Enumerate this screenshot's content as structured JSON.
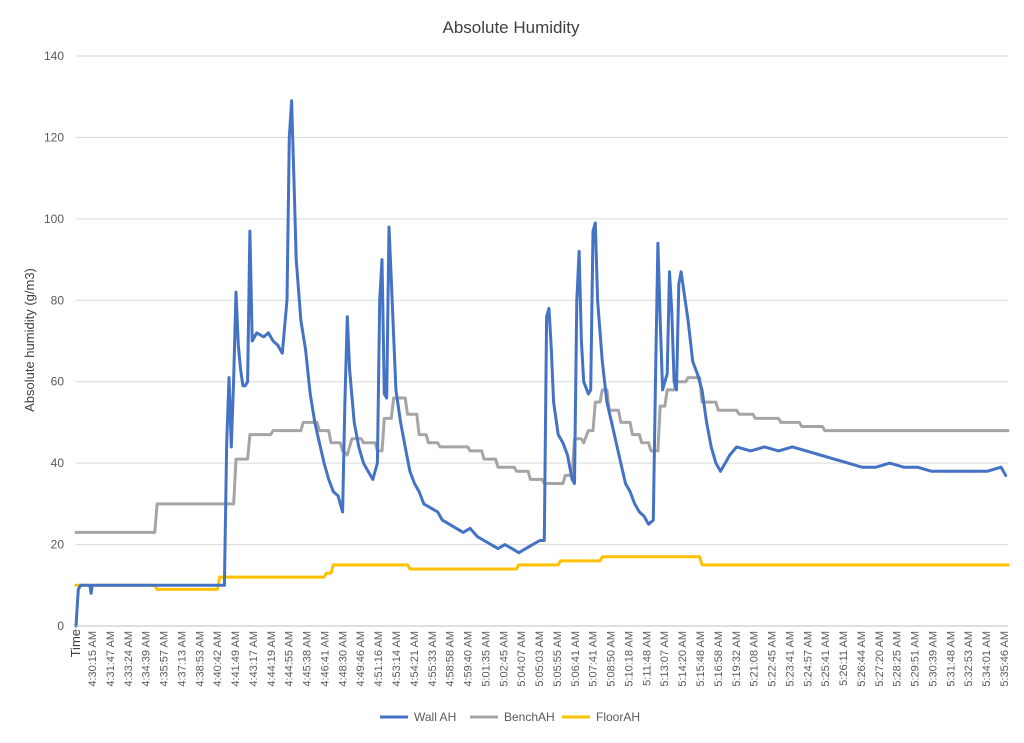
{
  "chart_data": {
    "type": "line",
    "title": "Absolute Humidity",
    "ylabel": "Absolute humidity (g/m3)",
    "xlabel": "Time",
    "ylim": [
      0,
      140
    ],
    "yticks": [
      0,
      20,
      40,
      60,
      80,
      100,
      120,
      140
    ],
    "grid": true,
    "legend_position": "bottom",
    "xlim": [
      "4:29:30 AM",
      "5:36:30 AM"
    ],
    "x_tick_labels": [
      "4:30:15 AM",
      "4:31:47 AM",
      "4:33:24 AM",
      "4:34:39 AM",
      "4:35:57 AM",
      "4:37:13 AM",
      "4:38:53 AM",
      "4:40:42 AM",
      "4:41:49 AM",
      "4:43:17 AM",
      "4:44:19 AM",
      "4:44:55 AM",
      "4:45:38 AM",
      "4:46:41 AM",
      "4:48:30 AM",
      "4:49:46 AM",
      "4:51:16 AM",
      "4:53:14 AM",
      "4:54:21 AM",
      "4:55:33 AM",
      "4:58:58 AM",
      "4:59:40 AM",
      "5:01:35 AM",
      "5:02:45 AM",
      "5:04:07 AM",
      "5:05:03 AM",
      "5:05:55 AM",
      "5:06:41 AM",
      "5:07:41 AM",
      "5:08:50 AM",
      "5:10:18 AM",
      "5:11:48 AM",
      "5:13:07 AM",
      "5:14:20 AM",
      "5:15:48 AM",
      "5:16:58 AM",
      "5:19:32 AM",
      "5:21:08 AM",
      "5:22:45 AM",
      "5:23:41 AM",
      "5:24:57 AM",
      "5:25:41 AM",
      "5:26:11 AM",
      "5:26:44 AM",
      "5:27:20 AM",
      "5:28:25 AM",
      "5:29:51 AM",
      "5:30:39 AM",
      "5:31:48 AM",
      "5:32:53 AM",
      "5:34:01 AM",
      "5:35:46 AM"
    ],
    "series": [
      {
        "name": "Wall AH",
        "color": "#4472c4",
        "points": [
          [
            "4:29:30 AM",
            0
          ],
          [
            "4:29:40 AM",
            9
          ],
          [
            "4:29:50 AM",
            10
          ],
          [
            "4:30:30 AM",
            10
          ],
          [
            "4:30:35 AM",
            8
          ],
          [
            "4:30:40 AM",
            10
          ],
          [
            "4:39:50 AM",
            10
          ],
          [
            "4:40:10 AM",
            10
          ],
          [
            "4:40:20 AM",
            45
          ],
          [
            "4:40:30 AM",
            61
          ],
          [
            "4:40:40 AM",
            44
          ],
          [
            "4:40:50 AM",
            61
          ],
          [
            "4:41:00 AM",
            82
          ],
          [
            "4:41:10 AM",
            69
          ],
          [
            "4:41:20 AM",
            63
          ],
          [
            "4:41:30 AM",
            59
          ],
          [
            "4:41:40 AM",
            59
          ],
          [
            "4:41:50 AM",
            60
          ],
          [
            "4:42:00 AM",
            97
          ],
          [
            "4:42:10 AM",
            70
          ],
          [
            "4:42:30 AM",
            72
          ],
          [
            "4:43:00 AM",
            71
          ],
          [
            "4:43:20 AM",
            72
          ],
          [
            "4:43:40 AM",
            70
          ],
          [
            "4:44:00 AM",
            69
          ],
          [
            "4:44:20 AM",
            67
          ],
          [
            "4:44:40 AM",
            80
          ],
          [
            "4:44:50 AM",
            120
          ],
          [
            "4:45:00 AM",
            129
          ],
          [
            "4:45:10 AM",
            110
          ],
          [
            "4:45:20 AM",
            90
          ],
          [
            "4:45:40 AM",
            75
          ],
          [
            "4:46:00 AM",
            68
          ],
          [
            "4:46:20 AM",
            57
          ],
          [
            "4:46:40 AM",
            50
          ],
          [
            "4:47:00 AM",
            45
          ],
          [
            "4:47:20 AM",
            40
          ],
          [
            "4:47:40 AM",
            36
          ],
          [
            "4:48:00 AM",
            33
          ],
          [
            "4:48:20 AM",
            32
          ],
          [
            "4:48:40 AM",
            28
          ],
          [
            "4:48:50 AM",
            55
          ],
          [
            "4:49:00 AM",
            76
          ],
          [
            "4:49:10 AM",
            63
          ],
          [
            "4:49:30 AM",
            50
          ],
          [
            "4:49:50 AM",
            44
          ],
          [
            "4:50:10 AM",
            40
          ],
          [
            "4:50:30 AM",
            38
          ],
          [
            "4:50:50 AM",
            36
          ],
          [
            "4:51:10 AM",
            40
          ],
          [
            "4:51:20 AM",
            80
          ],
          [
            "4:51:30 AM",
            90
          ],
          [
            "4:51:40 AM",
            57
          ],
          [
            "4:51:50 AM",
            56
          ],
          [
            "4:52:00 AM",
            98
          ],
          [
            "4:52:10 AM",
            85
          ],
          [
            "4:52:30 AM",
            58
          ],
          [
            "4:52:50 AM",
            50
          ],
          [
            "4:53:10 AM",
            44
          ],
          [
            "4:53:30 AM",
            38
          ],
          [
            "4:53:50 AM",
            35
          ],
          [
            "4:54:10 AM",
            33
          ],
          [
            "4:54:30 AM",
            30
          ],
          [
            "4:55:00 AM",
            29
          ],
          [
            "4:55:30 AM",
            28
          ],
          [
            "4:55:50 AM",
            26
          ],
          [
            "4:56:20 AM",
            25
          ],
          [
            "4:56:50 AM",
            24
          ],
          [
            "4:57:20 AM",
            23
          ],
          [
            "4:57:50 AM",
            24
          ],
          [
            "4:58:20 AM",
            22
          ],
          [
            "4:58:50 AM",
            21
          ],
          [
            "4:59:20 AM",
            20
          ],
          [
            "4:59:50 AM",
            19
          ],
          [
            "5:00:20 AM",
            20
          ],
          [
            "5:00:50 AM",
            19
          ],
          [
            "5:01:20 AM",
            18
          ],
          [
            "5:01:50 AM",
            19
          ],
          [
            "5:02:20 AM",
            20
          ],
          [
            "5:02:50 AM",
            21
          ],
          [
            "5:03:10 AM",
            21
          ],
          [
            "5:03:20 AM",
            76
          ],
          [
            "5:03:30 AM",
            78
          ],
          [
            "5:03:40 AM",
            68
          ],
          [
            "5:03:50 AM",
            55
          ],
          [
            "5:04:10 AM",
            47
          ],
          [
            "5:04:30 AM",
            45
          ],
          [
            "5:04:50 AM",
            42
          ],
          [
            "5:05:10 AM",
            36
          ],
          [
            "5:05:20 AM",
            35
          ],
          [
            "5:05:30 AM",
            80
          ],
          [
            "5:05:40 AM",
            92
          ],
          [
            "5:05:50 AM",
            70
          ],
          [
            "5:06:00 AM",
            60
          ],
          [
            "5:06:20 AM",
            57
          ],
          [
            "5:06:30 AM",
            58
          ],
          [
            "5:06:40 AM",
            97
          ],
          [
            "5:06:50 AM",
            99
          ],
          [
            "5:07:00 AM",
            80
          ],
          [
            "5:07:20 AM",
            65
          ],
          [
            "5:07:40 AM",
            55
          ],
          [
            "5:08:00 AM",
            50
          ],
          [
            "5:08:20 AM",
            45
          ],
          [
            "5:08:40 AM",
            40
          ],
          [
            "5:09:00 AM",
            35
          ],
          [
            "5:09:20 AM",
            33
          ],
          [
            "5:09:40 AM",
            30
          ],
          [
            "5:10:00 AM",
            28
          ],
          [
            "5:10:20 AM",
            27
          ],
          [
            "5:10:40 AM",
            25
          ],
          [
            "5:11:00 AM",
            26
          ],
          [
            "5:11:10 AM",
            62
          ],
          [
            "5:11:20 AM",
            94
          ],
          [
            "5:11:30 AM",
            75
          ],
          [
            "5:11:40 AM",
            58
          ],
          [
            "5:12:00 AM",
            62
          ],
          [
            "5:12:10 AM",
            87
          ],
          [
            "5:12:20 AM",
            77
          ],
          [
            "5:12:30 AM",
            60
          ],
          [
            "5:12:40 AM",
            58
          ],
          [
            "5:12:50 AM",
            84
          ],
          [
            "5:13:00 AM",
            87
          ],
          [
            "5:13:10 AM",
            83
          ],
          [
            "5:13:30 AM",
            75
          ],
          [
            "5:13:50 AM",
            65
          ],
          [
            "5:14:10 AM",
            62
          ],
          [
            "5:14:30 AM",
            58
          ],
          [
            "5:14:50 AM",
            50
          ],
          [
            "5:15:10 AM",
            44
          ],
          [
            "5:15:30 AM",
            40
          ],
          [
            "5:15:50 AM",
            38
          ],
          [
            "5:16:10 AM",
            40
          ],
          [
            "5:16:30 AM",
            42
          ],
          [
            "5:17:00 AM",
            44
          ],
          [
            "5:18:00 AM",
            43
          ],
          [
            "5:19:00 AM",
            44
          ],
          [
            "5:20:00 AM",
            43
          ],
          [
            "5:21:00 AM",
            44
          ],
          [
            "5:22:00 AM",
            43
          ],
          [
            "5:23:00 AM",
            42
          ],
          [
            "5:24:00 AM",
            41
          ],
          [
            "5:25:00 AM",
            40
          ],
          [
            "5:26:00 AM",
            39
          ],
          [
            "5:27:00 AM",
            39
          ],
          [
            "5:28:00 AM",
            40
          ],
          [
            "5:29:00 AM",
            39
          ],
          [
            "5:30:00 AM",
            39
          ],
          [
            "5:31:00 AM",
            38
          ],
          [
            "5:33:00 AM",
            38
          ],
          [
            "5:35:00 AM",
            38
          ],
          [
            "5:36:00 AM",
            39
          ],
          [
            "5:36:20 AM",
            37
          ]
        ]
      },
      {
        "name": "BenchAH",
        "color": "#a5a5a5",
        "points": [
          [
            "4:29:30 AM",
            23
          ],
          [
            "4:35:10 AM",
            23
          ],
          [
            "4:35:20 AM",
            30
          ],
          [
            "4:40:50 AM",
            30
          ],
          [
            "4:41:00 AM",
            41
          ],
          [
            "4:41:50 AM",
            41
          ],
          [
            "4:42:00 AM",
            47
          ],
          [
            "4:43:30 AM",
            47
          ],
          [
            "4:43:40 AM",
            48
          ],
          [
            "4:45:40 AM",
            48
          ],
          [
            "4:45:50 AM",
            50
          ],
          [
            "4:46:50 AM",
            50
          ],
          [
            "4:47:00 AM",
            48
          ],
          [
            "4:47:40 AM",
            48
          ],
          [
            "4:47:50 AM",
            45
          ],
          [
            "4:48:30 AM",
            45
          ],
          [
            "4:48:40 AM",
            43
          ],
          [
            "4:49:00 AM",
            42
          ],
          [
            "4:49:20 AM",
            46
          ],
          [
            "4:50:00 AM",
            46
          ],
          [
            "4:50:10 AM",
            45
          ],
          [
            "4:51:00 AM",
            45
          ],
          [
            "4:51:10 AM",
            43
          ],
          [
            "4:51:30 AM",
            43
          ],
          [
            "4:51:40 AM",
            51
          ],
          [
            "4:52:10 AM",
            51
          ],
          [
            "4:52:20 AM",
            56
          ],
          [
            "4:53:10 AM",
            56
          ],
          [
            "4:53:20 AM",
            52
          ],
          [
            "4:54:00 AM",
            52
          ],
          [
            "4:54:10 AM",
            47
          ],
          [
            "4:54:40 AM",
            47
          ],
          [
            "4:54:50 AM",
            45
          ],
          [
            "4:55:30 AM",
            45
          ],
          [
            "4:55:40 AM",
            44
          ],
          [
            "4:57:40 AM",
            44
          ],
          [
            "4:57:50 AM",
            43
          ],
          [
            "4:58:40 AM",
            43
          ],
          [
            "4:58:50 AM",
            41
          ],
          [
            "4:59:40 AM",
            41
          ],
          [
            "4:59:50 AM",
            39
          ],
          [
            "5:01:00 AM",
            39
          ],
          [
            "5:01:10 AM",
            38
          ],
          [
            "5:02:00 AM",
            38
          ],
          [
            "5:02:10 AM",
            36
          ],
          [
            "5:03:00 AM",
            36
          ],
          [
            "5:03:10 AM",
            35
          ],
          [
            "5:04:30 AM",
            35
          ],
          [
            "5:04:40 AM",
            37
          ],
          [
            "5:05:10 AM",
            37
          ],
          [
            "5:05:20 AM",
            46
          ],
          [
            "5:05:50 AM",
            46
          ],
          [
            "5:06:00 AM",
            45
          ],
          [
            "5:06:20 AM",
            48
          ],
          [
            "5:06:40 AM",
            48
          ],
          [
            "5:06:50 AM",
            55
          ],
          [
            "5:07:10 AM",
            55
          ],
          [
            "5:07:20 AM",
            58
          ],
          [
            "5:07:40 AM",
            58
          ],
          [
            "5:07:50 AM",
            53
          ],
          [
            "5:08:30 AM",
            53
          ],
          [
            "5:08:40 AM",
            50
          ],
          [
            "5:09:20 AM",
            50
          ],
          [
            "5:09:30 AM",
            47
          ],
          [
            "5:10:00 AM",
            47
          ],
          [
            "5:10:10 AM",
            45
          ],
          [
            "5:10:40 AM",
            45
          ],
          [
            "5:10:50 AM",
            43
          ],
          [
            "5:11:20 AM",
            43
          ],
          [
            "5:11:30 AM",
            54
          ],
          [
            "5:11:50 AM",
            54
          ],
          [
            "5:12:00 AM",
            58
          ],
          [
            "5:12:30 AM",
            58
          ],
          [
            "5:12:40 AM",
            60
          ],
          [
            "5:13:20 AM",
            60
          ],
          [
            "5:13:30 AM",
            61
          ],
          [
            "5:14:20 AM",
            61
          ],
          [
            "5:14:30 AM",
            55
          ],
          [
            "5:15:30 AM",
            55
          ],
          [
            "5:15:40 AM",
            53
          ],
          [
            "5:17:00 AM",
            53
          ],
          [
            "5:17:10 AM",
            52
          ],
          [
            "5:18:10 AM",
            52
          ],
          [
            "5:18:20 AM",
            51
          ],
          [
            "5:20:00 AM",
            51
          ],
          [
            "5:20:10 AM",
            50
          ],
          [
            "5:21:30 AM",
            50
          ],
          [
            "5:21:40 AM",
            49
          ],
          [
            "5:23:10 AM",
            49
          ],
          [
            "5:23:20 AM",
            48
          ],
          [
            "5:36:30 AM",
            48
          ]
        ]
      },
      {
        "name": "FloorAH",
        "color": "#ffc000",
        "points": [
          [
            "4:29:30 AM",
            10
          ],
          [
            "4:35:10 AM",
            10
          ],
          [
            "4:35:20 AM",
            9
          ],
          [
            "4:39:40 AM",
            9
          ],
          [
            "4:39:50 AM",
            12
          ],
          [
            "4:47:20 AM",
            12
          ],
          [
            "4:47:30 AM",
            13
          ],
          [
            "4:47:50 AM",
            13
          ],
          [
            "4:48:00 AM",
            15
          ],
          [
            "4:53:20 AM",
            15
          ],
          [
            "4:53:30 AM",
            14
          ],
          [
            "5:01:10 AM",
            14
          ],
          [
            "5:01:20 AM",
            15
          ],
          [
            "5:04:10 AM",
            15
          ],
          [
            "5:04:20 AM",
            16
          ],
          [
            "5:07:10 AM",
            16
          ],
          [
            "5:07:20 AM",
            17
          ],
          [
            "5:14:20 AM",
            17
          ],
          [
            "5:14:30 AM",
            15
          ],
          [
            "5:36:30 AM",
            15
          ]
        ]
      }
    ]
  }
}
